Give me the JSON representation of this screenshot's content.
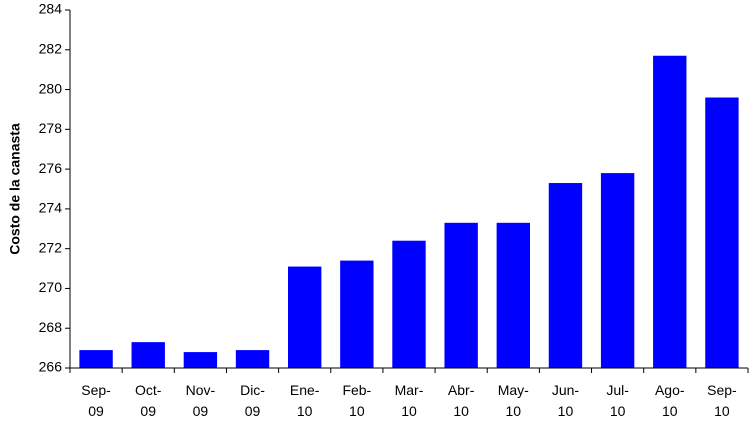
{
  "chart_data": {
    "type": "bar",
    "y_axis_label": "Costo de la canasta",
    "categories": [
      "Sep-09",
      "Oct-09",
      "Nov-09",
      "Dic-09",
      "Ene-10",
      "Feb-10",
      "Mar-10",
      "Abr-10",
      "May-10",
      "Jun-10",
      "Jul-10",
      "Ago-10",
      "Sep-10"
    ],
    "values": [
      266.9,
      267.3,
      266.8,
      266.9,
      271.1,
      271.4,
      272.4,
      273.3,
      273.3,
      275.3,
      275.8,
      281.7,
      279.6
    ],
    "color": "#0000ff",
    "ylim": [
      266,
      284
    ],
    "yticks": [
      266,
      268,
      270,
      272,
      274,
      276,
      278,
      280,
      282,
      284
    ],
    "grid": false
  }
}
